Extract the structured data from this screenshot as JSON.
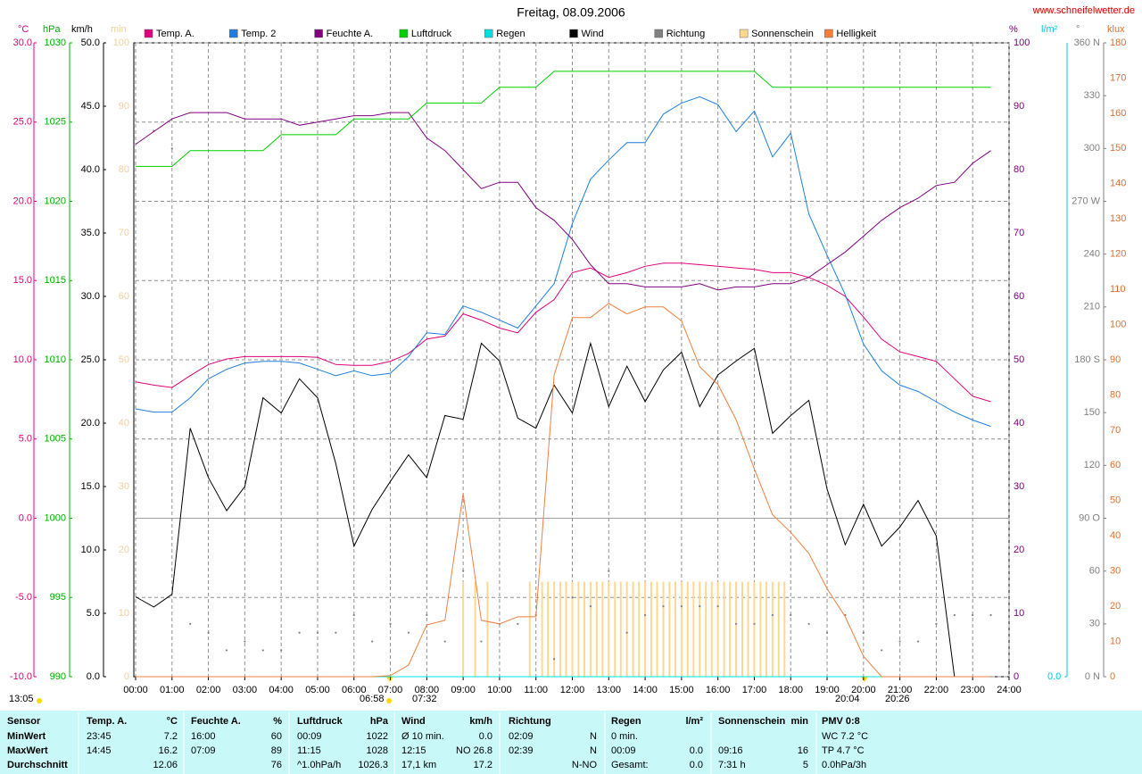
{
  "chart_data": {
    "type": "line",
    "title": "Freitag, 08.09.2006",
    "source": "www.schneifelwetter.de",
    "xlim": [
      0,
      24
    ],
    "xticks": [
      {
        "value": 0,
        "label": "00:00"
      },
      {
        "value": 1,
        "label": "01:00"
      },
      {
        "value": 2,
        "label": "02:00"
      },
      {
        "value": 3,
        "label": "03:00"
      },
      {
        "value": 4,
        "label": "04:00"
      },
      {
        "value": 5,
        "label": "05:00"
      },
      {
        "value": 6,
        "label": "06:00"
      },
      {
        "value": 7,
        "label": "07:00"
      },
      {
        "value": 8,
        "label": "08:00"
      },
      {
        "value": 9,
        "label": "09:00"
      },
      {
        "value": 10,
        "label": "10:00"
      },
      {
        "value": 11,
        "label": "11:00"
      },
      {
        "value": 12,
        "label": "12:00"
      },
      {
        "value": 13,
        "label": "13:00"
      },
      {
        "value": 14,
        "label": "14:00"
      },
      {
        "value": 15,
        "label": "15:00"
      },
      {
        "value": 16,
        "label": "16:00"
      },
      {
        "value": 17,
        "label": "17:00"
      },
      {
        "value": 18,
        "label": "18:00"
      },
      {
        "value": 19,
        "label": "19:00"
      },
      {
        "value": 20,
        "label": "20:00"
      },
      {
        "value": 21,
        "label": "21:00"
      },
      {
        "value": 22,
        "label": "22:00"
      },
      {
        "value": 23,
        "label": "23:00"
      },
      {
        "value": 24,
        "label": "24:00"
      }
    ],
    "grid": true,
    "grid_axis": "temp",
    "axes": [
      {
        "id": "temp",
        "label": "°C",
        "color": "#e0007c",
        "lim": [
          -10,
          30
        ],
        "ticks": [
          {
            "value": -10,
            "label": "-10.0"
          },
          {
            "value": -5,
            "label": "-5.0"
          },
          {
            "value": 0,
            "label": "0.0"
          },
          {
            "value": 5,
            "label": "5.0"
          },
          {
            "value": 10,
            "label": "10.0"
          },
          {
            "value": 15,
            "label": "15.0"
          },
          {
            "value": 20,
            "label": "20.0"
          },
          {
            "value": 25,
            "label": "25.0"
          },
          {
            "value": 30,
            "label": "30.0"
          }
        ]
      },
      {
        "id": "hpa",
        "label": "hPa",
        "color": "#00b000",
        "lim": [
          990,
          1030
        ],
        "ticks": [
          990,
          995,
          1000,
          1005,
          1010,
          1015,
          1020,
          1025,
          1030
        ]
      },
      {
        "id": "kmh",
        "label": "km/h",
        "color": "#000000",
        "lim": [
          0,
          50
        ],
        "ticks": [
          {
            "value": 0,
            "label": "0.0"
          },
          {
            "value": 5,
            "label": "5.0"
          },
          {
            "value": 10,
            "label": "10.0"
          },
          {
            "value": 15,
            "label": "15.0"
          },
          {
            "value": 20,
            "label": "20.0"
          },
          {
            "value": 25,
            "label": "25.0"
          },
          {
            "value": 30,
            "label": "30.0"
          },
          {
            "value": 35,
            "label": "35.0"
          },
          {
            "value": 40,
            "label": "40.0"
          },
          {
            "value": 45,
            "label": "45.0"
          },
          {
            "value": 50,
            "label": "50.0"
          }
        ]
      },
      {
        "id": "min",
        "label": "min",
        "color": "#f0d0a0",
        "lim": [
          0,
          100
        ],
        "ticks": [
          0,
          10,
          20,
          30,
          40,
          50,
          60,
          70,
          80,
          90,
          100
        ]
      },
      {
        "id": "pct",
        "label": "%",
        "color": "#800080",
        "lim": [
          0,
          100
        ],
        "ticks": [
          0,
          10,
          20,
          30,
          40,
          50,
          60,
          70,
          80,
          90,
          100
        ]
      },
      {
        "id": "rain",
        "label": "l/m²",
        "color": "#00c8e0",
        "ticks": [
          {
            "value": 0,
            "label": "0.0"
          }
        ]
      },
      {
        "id": "deg",
        "label": "°",
        "color": "#808080",
        "lim": [
          0,
          360
        ],
        "ticks": [
          {
            "value": 0,
            "label": "0 N"
          },
          30,
          60,
          {
            "value": 90,
            "label": "90 O"
          },
          120,
          150,
          {
            "value": 180,
            "label": "180 S"
          },
          210,
          240,
          {
            "value": 270,
            "label": "270 W"
          },
          300,
          330,
          {
            "value": 360,
            "label": "360 N"
          }
        ]
      },
      {
        "id": "klux",
        "label": "klux",
        "color": "#e07030",
        "lim": [
          0,
          180
        ],
        "ticks": [
          0,
          10,
          20,
          30,
          40,
          50,
          60,
          70,
          80,
          90,
          100,
          110,
          120,
          130,
          140,
          150,
          160,
          170,
          180
        ]
      }
    ],
    "x": [
      0,
      0.5,
      1,
      1.5,
      2,
      2.5,
      3,
      3.5,
      4,
      4.5,
      5,
      5.5,
      6,
      6.5,
      7,
      7.5,
      8,
      8.5,
      9,
      9.5,
      10,
      10.5,
      11,
      11.5,
      12,
      12.5,
      13,
      13.5,
      14,
      14.5,
      15,
      15.5,
      16,
      16.5,
      17,
      17.5,
      18,
      18.5,
      19,
      19.5,
      20,
      20.5,
      21,
      21.5,
      22,
      22.5,
      23,
      23.5
    ],
    "series": [
      {
        "name": "Temp. A.",
        "color": "#e0007c",
        "axis": "temp",
        "kind": "line",
        "values": [
          8.6,
          8.4,
          8.25,
          9.0,
          9.7,
          10.05,
          10.2,
          10.2,
          10.2,
          10.2,
          10.15,
          9.7,
          9.65,
          9.65,
          9.9,
          10.4,
          11.3,
          11.5,
          12.9,
          12.5,
          12.0,
          11.7,
          13.0,
          13.8,
          15.5,
          15.8,
          15.2,
          15.5,
          15.9,
          16.1,
          16.1,
          16.0,
          15.9,
          15.8,
          15.7,
          15.5,
          15.5,
          15.2,
          14.7,
          14.0,
          12.7,
          11.3,
          10.5,
          10.2,
          9.9,
          8.8,
          7.7,
          7.35
        ]
      },
      {
        "name": "Temp. 2",
        "color": "#1e7fe0",
        "axis": "temp",
        "kind": "line",
        "values": [
          6.9,
          6.7,
          6.7,
          7.6,
          8.8,
          9.4,
          9.8,
          9.9,
          9.9,
          9.8,
          9.4,
          9.0,
          9.3,
          9.0,
          9.15,
          10.2,
          11.7,
          11.6,
          13.4,
          13.0,
          12.5,
          12.0,
          13.4,
          14.8,
          18.6,
          21.4,
          22.6,
          23.7,
          23.7,
          25.5,
          26.2,
          26.6,
          26.1,
          24.4,
          25.7,
          22.8,
          24.3,
          19.2,
          16.6,
          14.1,
          11.0,
          9.3,
          8.4,
          8.0,
          7.35,
          6.7,
          6.2,
          5.8
        ]
      },
      {
        "name": "Feuchte A.",
        "color": "#800080",
        "axis": "pct",
        "kind": "line",
        "values": [
          84,
          86,
          88,
          89,
          89,
          89,
          88,
          88,
          88,
          87,
          87.5,
          88,
          88.5,
          88.5,
          89,
          89,
          85,
          83,
          80,
          77,
          78,
          78,
          74,
          72,
          69,
          65,
          62,
          62,
          61.5,
          61.5,
          61.5,
          62,
          61,
          61.5,
          61.5,
          62,
          62,
          63,
          65,
          67,
          69.5,
          72,
          74,
          75.5,
          77.5,
          78,
          81,
          83
        ]
      },
      {
        "name": "Luftdruck",
        "color": "#00d000",
        "axis": "hpa",
        "kind": "line",
        "values": [
          1022.2,
          1022.2,
          1022.2,
          1023.2,
          1023.2,
          1023.2,
          1023.2,
          1023.2,
          1024.2,
          1024.2,
          1024.2,
          1024.2,
          1025.2,
          1025.2,
          1025.2,
          1025.2,
          1026.2,
          1026.2,
          1026.2,
          1026.2,
          1027.2,
          1027.2,
          1027.2,
          1028.2,
          1028.2,
          1028.2,
          1028.2,
          1028.2,
          1028.2,
          1028.2,
          1028.2,
          1028.2,
          1028.2,
          1028.2,
          1028.2,
          1027.2,
          1027.2,
          1027.2,
          1027.2,
          1027.2,
          1027.2,
          1027.2,
          1027.2,
          1027.2,
          1027.2,
          1027.2,
          1027.2,
          1027.2
        ]
      },
      {
        "name": "Regen",
        "color": "#00e0e0",
        "axis": "rain",
        "kind": "line",
        "x": [
          0,
          23.5
        ],
        "values": [
          0,
          0
        ]
      },
      {
        "name": "Wind",
        "color": "#000000",
        "axis": "kmh",
        "kind": "line",
        "values": [
          6.3,
          5.5,
          6.5,
          19.6,
          15.7,
          13.1,
          15,
          22,
          20.8,
          23.5,
          22,
          16.8,
          10.3,
          13.2,
          15.4,
          17.5,
          15.7,
          20.6,
          20.3,
          26.3,
          24.9,
          20.4,
          19.6,
          23,
          20.8,
          26.3,
          21.3,
          24.5,
          21.7,
          24.2,
          25.6,
          21.3,
          23.8,
          24.9,
          25.9,
          19.2,
          20.6,
          21.8,
          14.8,
          10.4,
          13.6,
          10.3,
          11.8,
          13.9,
          11.1,
          0,
          0,
          0
        ]
      },
      {
        "name": "Richtung",
        "color": "#808080",
        "axis": "deg",
        "kind": "dots",
        "values": [
          320,
          310,
          300,
          30,
          25,
          15,
          20,
          15,
          15,
          25,
          25,
          25,
          35,
          20,
          30,
          25,
          35,
          20,
          60,
          20,
          30,
          30,
          35,
          10,
          45,
          40,
          60,
          25,
          35,
          40,
          40,
          40,
          40,
          30,
          30,
          35,
          35,
          30,
          25,
          35,
          25,
          15,
          20,
          20,
          30,
          35,
          35,
          35
        ]
      },
      {
        "name": "Sonnenschein",
        "color": "#ffd890",
        "axis": "min",
        "kind": "bars",
        "x": [
          9.0,
          9.33,
          9.67,
          10.83,
          11.17,
          11.33,
          11.5,
          11.67,
          11.83,
          12.0,
          12.17,
          12.33,
          12.5,
          12.67,
          12.83,
          13.0,
          13.17,
          13.33,
          13.5,
          13.67,
          13.83,
          14.0,
          14.17,
          14.33,
          14.5,
          14.67,
          14.83,
          15.0,
          15.17,
          15.33,
          15.5,
          15.67,
          15.83,
          16.0,
          16.17,
          16.33,
          16.5,
          16.67,
          16.83,
          17.0,
          17.17,
          17.33,
          17.5,
          17.67,
          17.83
        ],
        "values": [
          15,
          15,
          15,
          15,
          15,
          15,
          15,
          15,
          15,
          15,
          15,
          15,
          15,
          15,
          15,
          15,
          15,
          15,
          15,
          15,
          15,
          15,
          15,
          15,
          15,
          15,
          15,
          15,
          15,
          15,
          15,
          15,
          15,
          15,
          15,
          15,
          15,
          15,
          15,
          15,
          15,
          15,
          15,
          15,
          15
        ]
      },
      {
        "name": "Helligkeit",
        "color": "#f08040",
        "axis": "klux",
        "kind": "line",
        "values": [
          0,
          0,
          0,
          0,
          0,
          0,
          0,
          0,
          0,
          0,
          0,
          0,
          0,
          0,
          0.3,
          3.3,
          14.7,
          16,
          52,
          16,
          15,
          17,
          17,
          85.7,
          102,
          102,
          106,
          103,
          105,
          105,
          101,
          88,
          83,
          73,
          59,
          46,
          41,
          35,
          25,
          17,
          5.8,
          0,
          0,
          0,
          0,
          0,
          0,
          0
        ]
      }
    ],
    "sun_times": {
      "day_length": "13:05",
      "sunrise": "06:58",
      "sunrise_2": "07:32",
      "sunset": "20:04",
      "sunset_2": "20:26"
    }
  },
  "stats": {
    "header": [
      "Sensor",
      "Temp. A.",
      "°C",
      "Feuchte A.",
      "%",
      "Luftdruck",
      "hPa",
      "Wind",
      "km/h",
      "Richtung",
      null,
      "Regen",
      "l/m²",
      "Sonnenschein",
      "min",
      "PMV 0:8"
    ],
    "rows": [
      [
        "MinWert",
        "23:45",
        "7.2",
        "16:00",
        "60",
        "00:09",
        "1022",
        "Ø 10 min.",
        "0.0",
        "02:09",
        "N",
        "0 min.",
        null,
        null,
        null,
        "WC 7.2 °C"
      ],
      [
        "MaxWert",
        "14:45",
        "16.2",
        "07:09",
        "89",
        "11:15",
        "1028",
        "12:15",
        "NO 26.8",
        "02:39",
        "N",
        "00:09",
        "0.0",
        "09:16",
        "16",
        "TP 4.7 °C"
      ],
      [
        "Durchschnitt",
        null,
        "12.06",
        null,
        "76",
        "^1.0hPa/h",
        "1026.3",
        "17,1 km",
        "17.2",
        null,
        "N-NO",
        "Gesamt:",
        "0.0",
        "7:31 h",
        "5",
        "0.0hPa/3h"
      ]
    ]
  }
}
